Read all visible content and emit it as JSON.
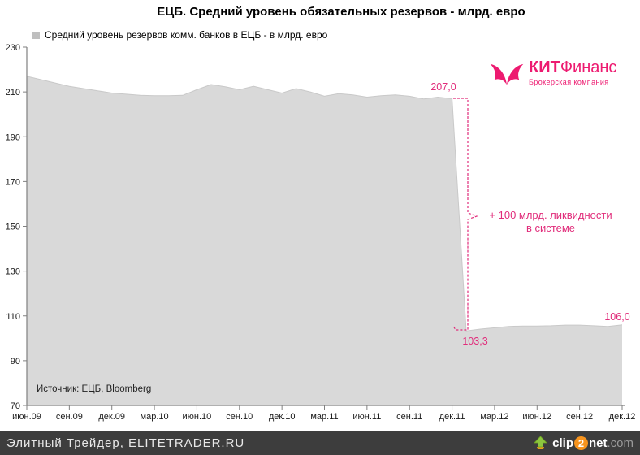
{
  "title": "ЕЦБ. Средний уровень обязательных резервов - млрд. евро",
  "legend": {
    "label": "Средний уровень резервов комм. банков в ЕЦБ - в млрд. евро",
    "marker_color": "#bfbfbf"
  },
  "source_note": "Источник: ЕЦБ, Bloomberg",
  "logo": {
    "brand_bold": "КИТ",
    "brand_regular": "Финанс",
    "subtitle": "Брокерская компания",
    "color": "#ed1a70",
    "icon": "whale-tail-icon"
  },
  "annotations": {
    "peak_label": "207,0",
    "trough_label": "103,3",
    "end_label": "106,0",
    "callout_line1": "+ 100 млрд. ликвидности",
    "callout_line2": "в системе",
    "color": "#e12d7b"
  },
  "footer": {
    "left_text": "Элитный Трейдер, ELITETRADER.RU",
    "clip2net": {
      "clip": "clip",
      "two": "2",
      "net": "net",
      "com": ".com"
    }
  },
  "chart_data": {
    "type": "area",
    "title": "ЕЦБ. Средний уровень обязательных резервов - млрд. евро",
    "legend_entries": [
      "Средний уровень резервов комм. банков в ЕЦБ - в млрд. евро"
    ],
    "legend_position": "top-left",
    "grid": false,
    "xlabel": "",
    "ylabel": "",
    "ylim": [
      70,
      230
    ],
    "ytick_step": 20,
    "y_tick_labels": [
      70,
      90,
      110,
      130,
      150,
      170,
      190,
      210,
      230
    ],
    "x_tick_labels": [
      "июн.09",
      "сен.09",
      "дек.09",
      "мар.10",
      "июн.10",
      "сен.10",
      "дек.10",
      "мар.11",
      "июн.11",
      "сен.11",
      "дек.11",
      "мар.12",
      "июн.12",
      "сен.12",
      "дек.12"
    ],
    "months_per_tick": 3,
    "x_monthly_from": "июн.09",
    "x_monthly_to": "дек.12",
    "values": [
      217,
      215.5,
      214,
      212.5,
      211.5,
      210.5,
      209.5,
      209,
      208.5,
      208.3,
      208.3,
      208.5,
      211,
      213.3,
      212.3,
      211,
      212.5,
      211,
      209.5,
      211.5,
      210,
      208.1,
      209.2,
      208.7,
      207.7,
      208.3,
      208.7,
      208.1,
      206.9,
      207.7,
      207.0,
      103.3,
      104.1,
      104.7,
      105.3,
      105.5,
      105.5,
      105.6,
      105.9,
      105.9,
      105.6,
      105.3,
      106.0
    ],
    "annotations": [
      {
        "text": "207,0",
        "month_index": 30,
        "value": 207.0
      },
      {
        "text": "103,3",
        "month_index": 31,
        "value": 103.3
      },
      {
        "text": "106,0",
        "month_index": 42,
        "value": 106.0
      },
      {
        "text": "+ 100 млрд. ликвидности в системе",
        "type": "brace-callout"
      }
    ],
    "area_fill": "#d9d9d9",
    "area_stroke": "#c9c9c9",
    "axis_color": "#808080",
    "tick_label_color": "#1a1a1a"
  }
}
